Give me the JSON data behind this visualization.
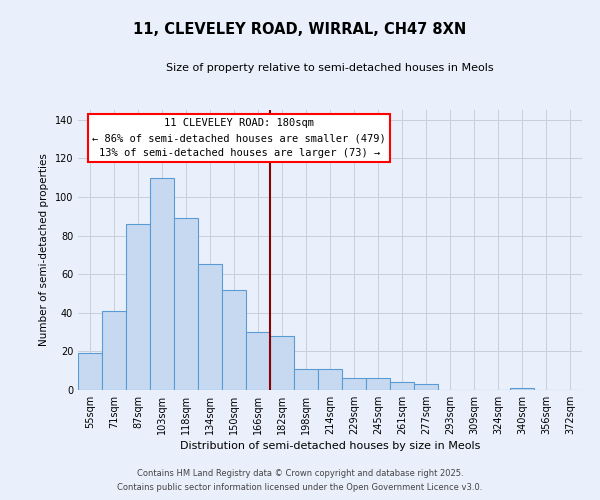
{
  "title": "11, CLEVELEY ROAD, WIRRAL, CH47 8XN",
  "subtitle": "Size of property relative to semi-detached houses in Meols",
  "xlabel": "Distribution of semi-detached houses by size in Meols",
  "ylabel": "Number of semi-detached properties",
  "categories": [
    "55sqm",
    "71sqm",
    "87sqm",
    "103sqm",
    "118sqm",
    "134sqm",
    "150sqm",
    "166sqm",
    "182sqm",
    "198sqm",
    "214sqm",
    "229sqm",
    "245sqm",
    "261sqm",
    "277sqm",
    "293sqm",
    "309sqm",
    "324sqm",
    "340sqm",
    "356sqm",
    "372sqm"
  ],
  "values": [
    19,
    41,
    86,
    110,
    89,
    65,
    52,
    30,
    28,
    11,
    11,
    6,
    6,
    4,
    3,
    0,
    0,
    0,
    1,
    0,
    0
  ],
  "bar_color": "#c6d9f0",
  "bar_edge_color": "#5b9bd5",
  "background_color": "#eaf0fb",
  "grid_color": "#c8d0dc",
  "marker_line_index": 7.5,
  "marker_label": "11 CLEVELEY ROAD: 180sqm",
  "smaller_pct": "86%",
  "smaller_count": 479,
  "larger_pct": "13%",
  "larger_count": 73,
  "ylim": [
    0,
    145
  ],
  "yticks": [
    0,
    20,
    40,
    60,
    80,
    100,
    120,
    140
  ],
  "footnote1": "Contains HM Land Registry data © Crown copyright and database right 2025.",
  "footnote2": "Contains public sector information licensed under the Open Government Licence v3.0."
}
